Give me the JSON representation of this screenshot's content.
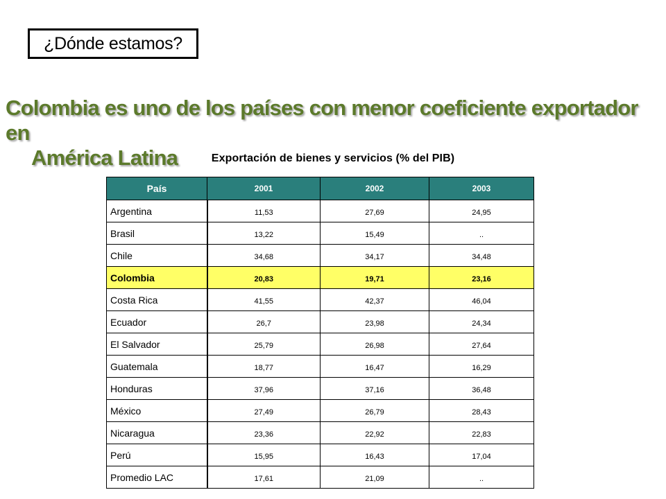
{
  "where_box": {
    "text": "¿Dónde estamos?"
  },
  "headline": {
    "line1": "Colombia es uno de los países con menor coeficiente exportador en",
    "line2": "América Latina",
    "color": "#5c7a2b"
  },
  "table": {
    "title": "Exportación de bienes y servicios (% del PIB)",
    "header_color": "#2a7f7c",
    "highlight_color": "#ffff66",
    "headers": [
      "País",
      "2001",
      "2002",
      "2003"
    ],
    "rows": [
      [
        "Argentina",
        "11,53",
        "27,69",
        "24,95"
      ],
      [
        "Brasil",
        "13,22",
        "15,49",
        ".."
      ],
      [
        "Chile",
        "34,68",
        "34,17",
        "34,48"
      ],
      [
        "Colombia",
        "20,83",
        "19,71",
        "23,16"
      ],
      [
        "Costa Rica",
        "41,55",
        "42,37",
        "46,04"
      ],
      [
        "Ecuador",
        "26,7",
        "23,98",
        "24,34"
      ],
      [
        "El Salvador",
        "25,79",
        "26,98",
        "27,64"
      ],
      [
        "Guatemala",
        "18,77",
        "16,47",
        "16,29"
      ],
      [
        "Honduras",
        "37,96",
        "37,16",
        "36,48"
      ],
      [
        "México",
        "27,49",
        "26,79",
        "28,43"
      ],
      [
        "Nicaragua",
        "23,36",
        "22,92",
        "22,83"
      ],
      [
        "Perú",
        "15,95",
        "16,43",
        "17,04"
      ],
      [
        "Promedio LAC",
        "17,61",
        "21,09",
        ".."
      ]
    ],
    "highlighted_row": "Colombia"
  }
}
